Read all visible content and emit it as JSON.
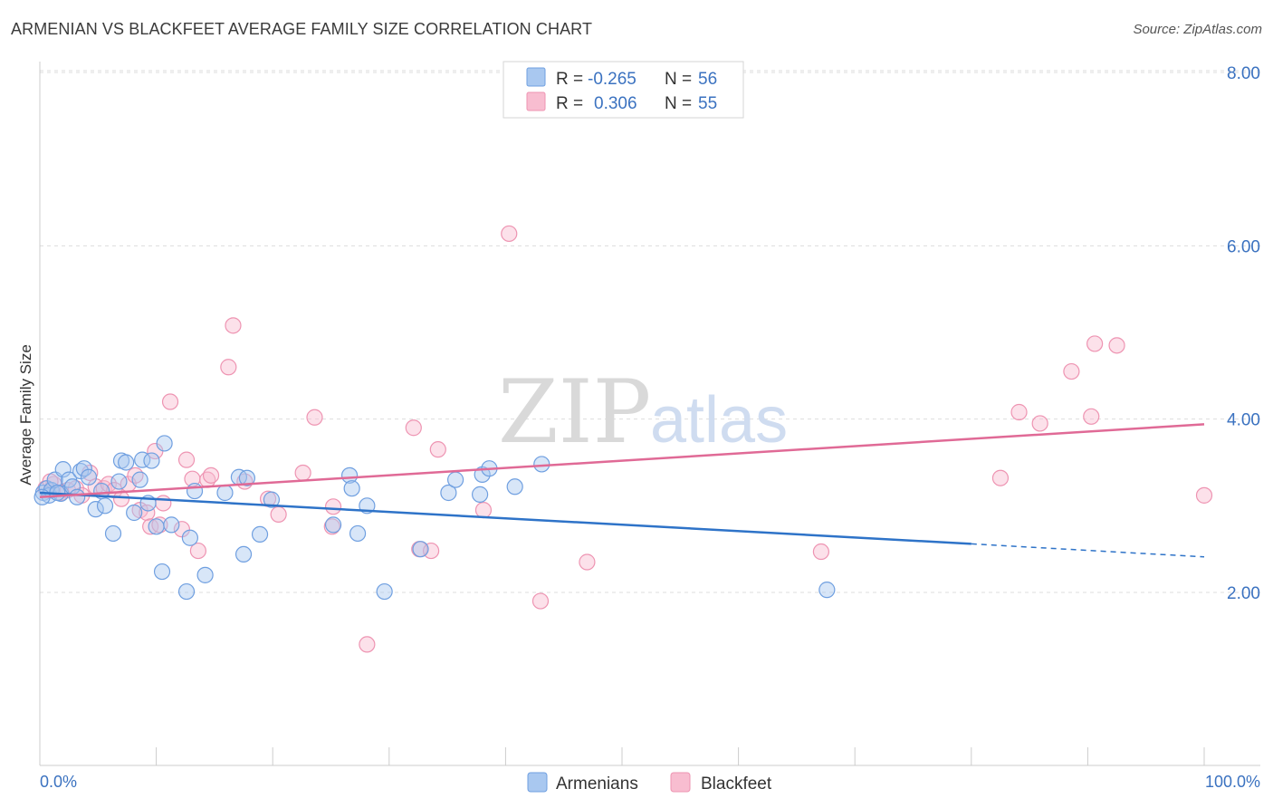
{
  "title": "ARMENIAN VS BLACKFEET AVERAGE FAMILY SIZE CORRELATION CHART",
  "source": "Source: ZipAtlas.com",
  "watermark": {
    "part1": "ZIP",
    "part2": "atlas"
  },
  "colors": {
    "armenians_fill": "#a9c8f0",
    "armenians_stroke": "#6f9fe0",
    "armenians_line": "#2e73c8",
    "blackfeet_fill": "#f8bdd0",
    "blackfeet_stroke": "#ee94b2",
    "blackfeet_line": "#e06a96",
    "axis_text": "#3b72c0",
    "grid": "#dddddd"
  },
  "legend_top": {
    "rows": [
      {
        "r_label": "R =",
        "r_value": "-0.265",
        "n_label": "N =",
        "n_value": "56"
      },
      {
        "r_label": "R =",
        "r_value": "0.306",
        "n_label": "N =",
        "n_value": "55"
      }
    ]
  },
  "legend_bottom": {
    "items": [
      "Armenians",
      "Blackfeet"
    ]
  },
  "chart_data": {
    "type": "scatter",
    "title": "ARMENIAN VS BLACKFEET AVERAGE FAMILY SIZE CORRELATION CHART",
    "xlabel": "",
    "ylabel": "Average Family Size",
    "xlim": [
      0,
      100
    ],
    "ylim": [
      0.5,
      8.5
    ],
    "x_tick_labels": [
      "0.0%",
      "100.0%"
    ],
    "y_ticks": [
      2,
      4,
      6,
      8
    ],
    "y_tick_labels": [
      "2.00",
      "4.00",
      "6.00",
      "8.00"
    ],
    "grid": "horizontal dashed",
    "legend_placement": "top-center and bottom",
    "series": [
      {
        "name": "Armenians",
        "R": -0.265,
        "N": 56,
        "trend": {
          "x0": 0,
          "y0": 3.15,
          "x1": 80,
          "y1": 2.56,
          "dashed_to_x": 100,
          "dashed_to_y": 2.41
        },
        "points": [
          [
            0.3,
            3.15
          ],
          [
            0.6,
            3.2
          ],
          [
            0.8,
            3.12
          ],
          [
            1,
            3.18
          ],
          [
            1.3,
            3.3
          ],
          [
            1.8,
            3.14
          ],
          [
            2,
            3.42
          ],
          [
            2.5,
            3.3
          ],
          [
            2.8,
            3.22
          ],
          [
            3.2,
            3.1
          ],
          [
            3.5,
            3.4
          ],
          [
            3.8,
            3.43
          ],
          [
            4.2,
            3.33
          ],
          [
            4.8,
            2.96
          ],
          [
            5.3,
            3.17
          ],
          [
            5.6,
            3.0
          ],
          [
            6.3,
            2.68
          ],
          [
            6.8,
            3.28
          ],
          [
            7,
            3.52
          ],
          [
            7.4,
            3.5
          ],
          [
            8.1,
            2.92
          ],
          [
            8.6,
            3.3
          ],
          [
            8.8,
            3.53
          ],
          [
            9.3,
            3.03
          ],
          [
            9.6,
            3.52
          ],
          [
            10,
            2.76
          ],
          [
            10.5,
            2.24
          ],
          [
            10.7,
            3.72
          ],
          [
            11.3,
            2.78
          ],
          [
            12.6,
            2.01
          ],
          [
            12.9,
            2.63
          ],
          [
            13.3,
            3.17
          ],
          [
            14.2,
            2.2
          ],
          [
            15.9,
            3.15
          ],
          [
            17.1,
            3.33
          ],
          [
            17.5,
            2.44
          ],
          [
            17.8,
            3.32
          ],
          [
            18.9,
            2.67
          ],
          [
            19.9,
            3.07
          ],
          [
            25.2,
            2.78
          ],
          [
            26.6,
            3.35
          ],
          [
            26.8,
            3.2
          ],
          [
            27.3,
            2.68
          ],
          [
            28.1,
            3.0
          ],
          [
            29.6,
            2.01
          ],
          [
            32.7,
            2.5
          ],
          [
            35.1,
            3.15
          ],
          [
            35.7,
            3.3
          ],
          [
            37.8,
            3.13
          ],
          [
            38,
            3.36
          ],
          [
            38.6,
            3.43
          ],
          [
            40.8,
            3.22
          ],
          [
            43.1,
            3.48
          ],
          [
            67.6,
            2.03
          ],
          [
            0.2,
            3.1
          ],
          [
            1.5,
            3.15
          ]
        ]
      },
      {
        "name": "Blackfeet",
        "R": 0.306,
        "N": 55,
        "trend": {
          "x0": 0,
          "y0": 3.1,
          "x1": 100,
          "y1": 3.94
        },
        "points": [
          [
            0.5,
            3.2
          ],
          [
            1.2,
            3.25
          ],
          [
            1.8,
            3.15
          ],
          [
            2.4,
            3.18
          ],
          [
            3.1,
            3.2
          ],
          [
            3.6,
            3.12
          ],
          [
            4.3,
            3.38
          ],
          [
            4.8,
            3.22
          ],
          [
            5.5,
            3.2
          ],
          [
            5.9,
            3.25
          ],
          [
            6.4,
            3.18
          ],
          [
            7,
            3.08
          ],
          [
            7.6,
            3.25
          ],
          [
            8.2,
            3.35
          ],
          [
            8.6,
            2.95
          ],
          [
            9.2,
            2.92
          ],
          [
            9.5,
            2.76
          ],
          [
            9.9,
            3.63
          ],
          [
            10.3,
            2.78
          ],
          [
            10.6,
            3.03
          ],
          [
            11.2,
            4.2
          ],
          [
            12.2,
            2.73
          ],
          [
            12.6,
            3.53
          ],
          [
            13.1,
            3.31
          ],
          [
            13.6,
            2.48
          ],
          [
            14.4,
            3.3
          ],
          [
            14.7,
            3.35
          ],
          [
            16.2,
            4.6
          ],
          [
            16.6,
            5.08
          ],
          [
            17.6,
            3.28
          ],
          [
            19.6,
            3.08
          ],
          [
            20.5,
            2.9
          ],
          [
            22.6,
            3.38
          ],
          [
            23.6,
            4.02
          ],
          [
            25.1,
            2.76
          ],
          [
            25.2,
            2.99
          ],
          [
            28.1,
            1.4
          ],
          [
            32.1,
            3.9
          ],
          [
            32.6,
            2.5
          ],
          [
            33.6,
            2.48
          ],
          [
            34.2,
            3.65
          ],
          [
            38.1,
            2.95
          ],
          [
            40.3,
            6.14
          ],
          [
            43,
            1.9
          ],
          [
            47,
            2.35
          ],
          [
            67.1,
            2.47
          ],
          [
            82.5,
            3.32
          ],
          [
            84.1,
            4.08
          ],
          [
            85.9,
            3.95
          ],
          [
            88.6,
            4.55
          ],
          [
            90.3,
            4.03
          ],
          [
            90.6,
            4.87
          ],
          [
            92.5,
            4.85
          ],
          [
            100,
            3.12
          ],
          [
            0.9,
            3.28
          ]
        ]
      }
    ]
  }
}
